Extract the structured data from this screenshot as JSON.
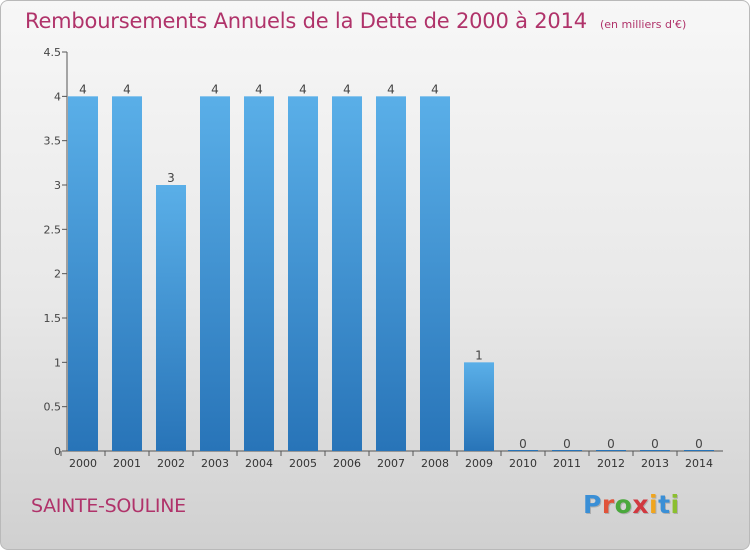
{
  "page": {
    "title": "Remboursements Annuels de la Dette de 2000 à 2014",
    "subtitle": "(en milliers d'€)",
    "commune": "SAINTE-SOULINE",
    "logo_text": "Proxiti"
  },
  "colors": {
    "title": "#b0336a",
    "bar_top": "#5aafe8",
    "bar_bottom": "#2874b8",
    "logo_letters": [
      "#3a8fd6",
      "#e0533a",
      "#4aa83c",
      "#d1383f",
      "#f0a51e",
      "#3a8fd6",
      "#8bbf2f"
    ]
  },
  "chart_data": {
    "type": "bar",
    "title": "Remboursements Annuels de la Dette de 2000 à 2014",
    "subtitle": "(en milliers d'€)",
    "xlabel": "",
    "ylabel": "",
    "categories": [
      "2000",
      "2001",
      "2002",
      "2003",
      "2004",
      "2005",
      "2006",
      "2007",
      "2008",
      "2009",
      "2010",
      "2011",
      "2012",
      "2013",
      "2014"
    ],
    "values": [
      4,
      4,
      3,
      4,
      4,
      4,
      4,
      4,
      4,
      1,
      0,
      0,
      0,
      0,
      0
    ],
    "data_labels": [
      "4",
      "4",
      "3",
      "4",
      "4",
      "4",
      "4",
      "4",
      "4",
      "1",
      "0",
      "0",
      "0",
      "0",
      "0"
    ],
    "ylim": [
      0,
      4.5
    ],
    "yticks": [
      0,
      0.5,
      1,
      1.5,
      2,
      2.5,
      3,
      3.5,
      4,
      4.5
    ],
    "ytick_labels": [
      "0",
      "0.5",
      "1",
      "1.5",
      "2",
      "2.5",
      "3",
      "3.5",
      "4",
      "4.5"
    ],
    "grid": false,
    "legend": "none"
  }
}
